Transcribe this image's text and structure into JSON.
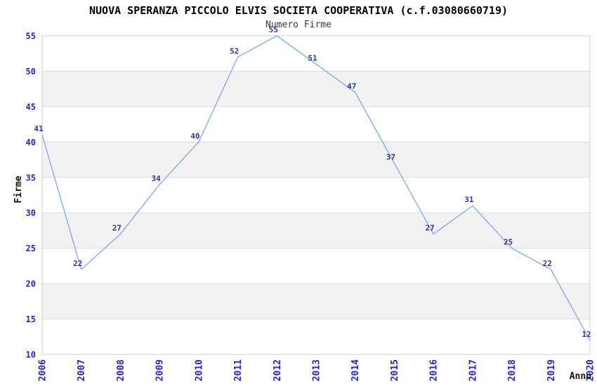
{
  "chart_data": {
    "type": "line",
    "title": "NUOVA SPERANZA PICCOLO ELVIS SOCIETA COOPERATIVA (c.f.03080660719)",
    "subtitle": "Numero Firme",
    "xlabel": "Anno",
    "ylabel": "Firme",
    "categories": [
      "2006",
      "2007",
      "2008",
      "2009",
      "2010",
      "2011",
      "2012",
      "2013",
      "2014",
      "2015",
      "2016",
      "2017",
      "2018",
      "2019",
      "2020"
    ],
    "values": [
      41,
      22,
      27,
      34,
      40,
      52,
      55,
      51,
      47,
      37,
      27,
      31,
      25,
      22,
      12
    ],
    "ylim": [
      10,
      55
    ],
    "yticks": [
      10,
      15,
      20,
      25,
      30,
      35,
      40,
      45,
      50,
      55
    ],
    "grid": "alternating-horizontal-bands",
    "legend": "none",
    "point_labels_visible": true,
    "colors": {
      "background": "#ffffff",
      "line": "#7eb1e8",
      "point_label": "#32329b",
      "tick_label": "#2323d6",
      "band_gray": "#f2f2f2",
      "band_edge": "#dcdcdc",
      "plot_border": "#cfcfcf",
      "axis_title": "#111111",
      "title": "#000000",
      "subtitle": "#3a3a3a"
    }
  }
}
